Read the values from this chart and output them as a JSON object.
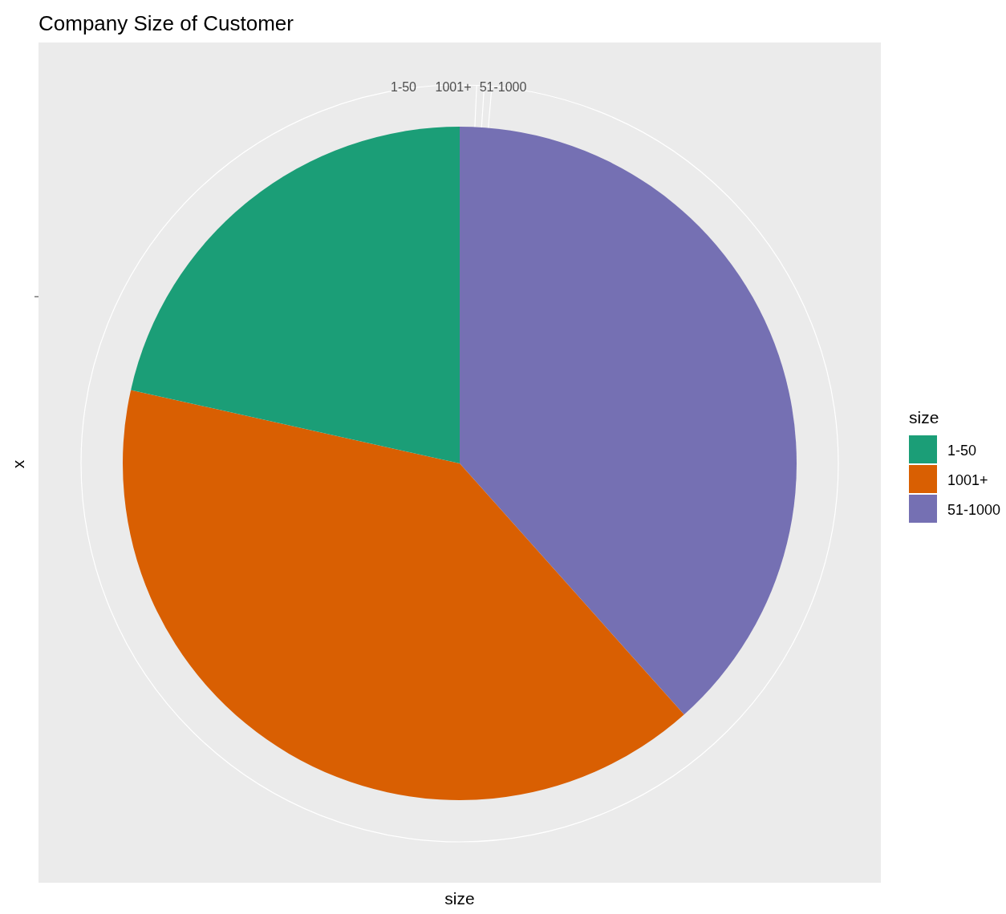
{
  "chart_data": {
    "type": "pie",
    "title": "Company Size of Customer",
    "xlabel": "size",
    "ylabel": "x",
    "legend_title": "size",
    "legend": "right",
    "categories": [
      "1-50",
      "1001+",
      "51-1000"
    ],
    "values": [
      21.5,
      40.1,
      38.4
    ],
    "colors": [
      "#1b9e77",
      "#d95f02",
      "#7570b3"
    ]
  }
}
